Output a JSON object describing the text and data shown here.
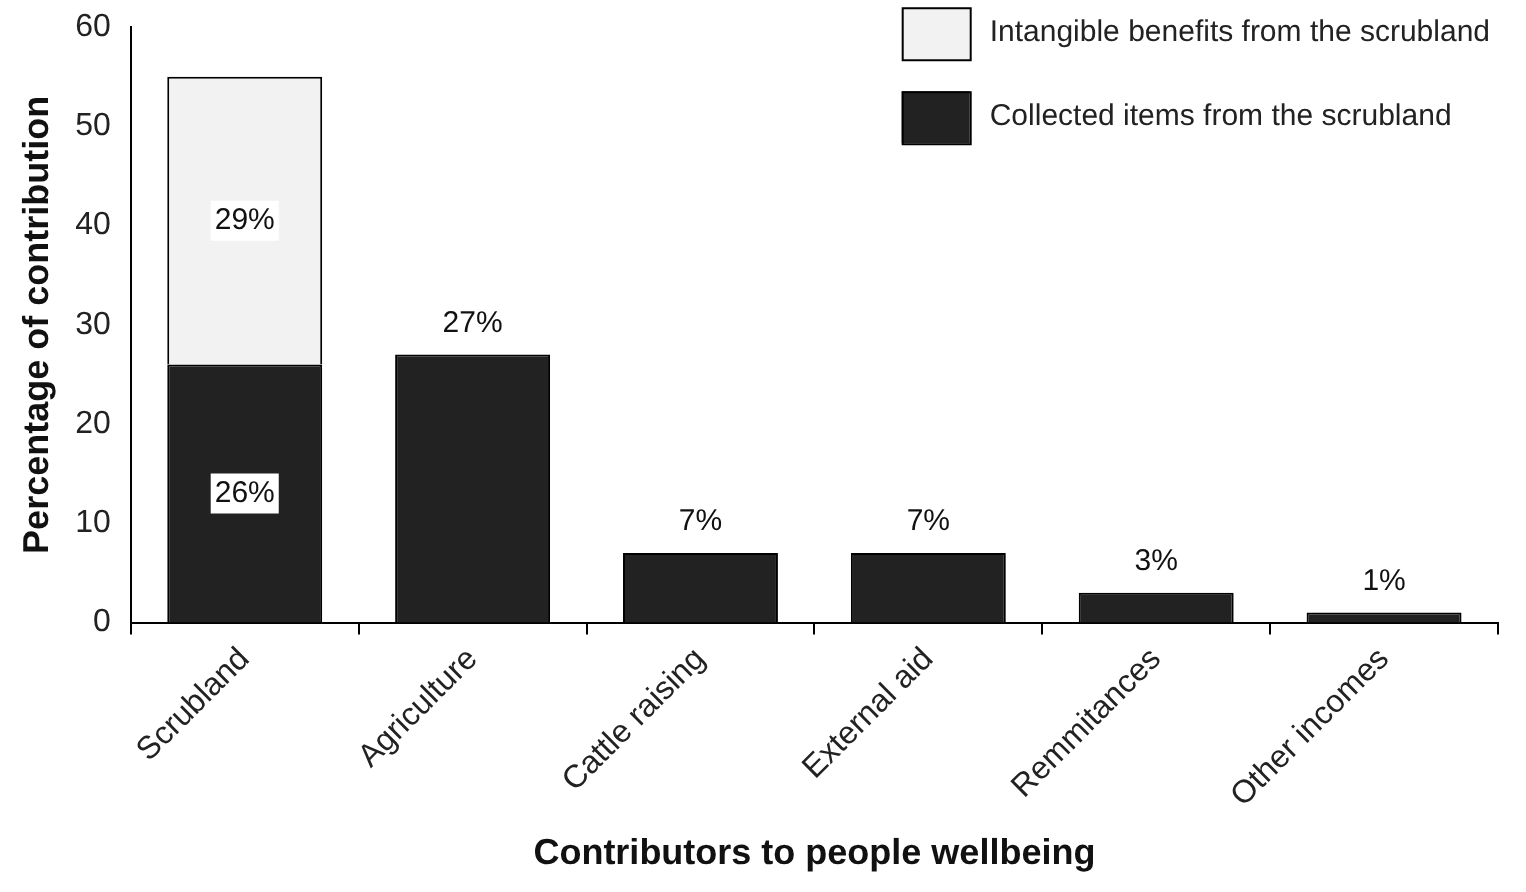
{
  "chart_data": {
    "type": "bar",
    "stacked": true,
    "xlabel": "Contributors to people wellbeing",
    "ylabel": "Percentage of contribution",
    "categories": [
      "Scrubland",
      "Agriculture",
      "Cattle raising",
      "External aid",
      "Remmitances",
      "Other incomes"
    ],
    "series": [
      {
        "name": "Collected items from the scrubland",
        "color": "#222222",
        "values": [
          26,
          27,
          7,
          7,
          3,
          1
        ],
        "value_labels": [
          "26%",
          "27%",
          "7%",
          "7%",
          "3%",
          "1%"
        ]
      },
      {
        "name": "Intangible benefits from the scrubland",
        "color": "#f2f2f2",
        "values": [
          29,
          null,
          null,
          null,
          null,
          null
        ],
        "value_labels": [
          "29%",
          null,
          null,
          null,
          null,
          null
        ]
      }
    ],
    "ylim": [
      0,
      60
    ],
    "yticks": [
      0,
      10,
      20,
      30,
      40,
      50,
      60
    ],
    "grid": false,
    "legend": "top right"
  }
}
